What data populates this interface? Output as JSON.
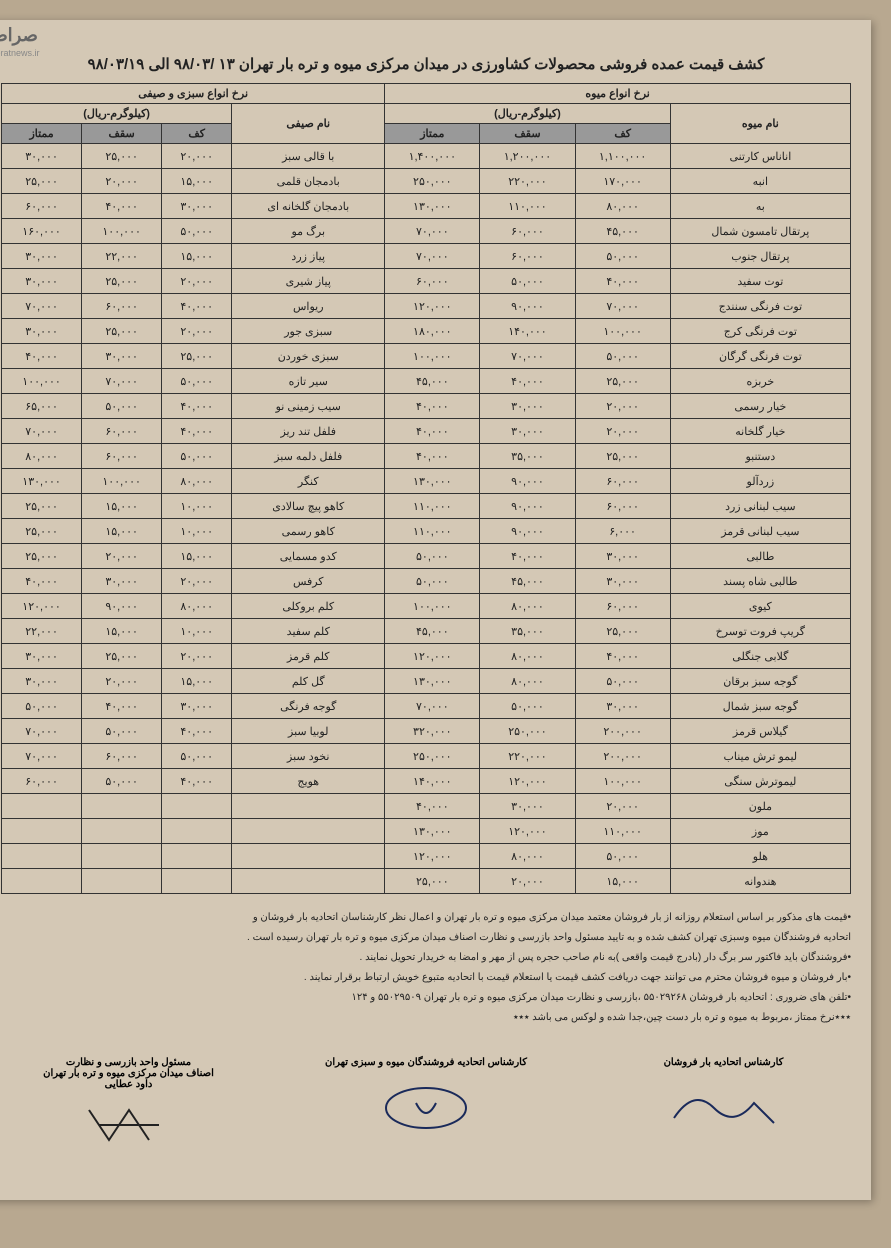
{
  "watermark": "صراط",
  "watermark_url": "seratnews.ir",
  "title": "کشف قیمت عمده فروشی محصولات کشاورزی در میدان مرکزی میوه و تره بار تهران ۱۳ /۹۸/۰۳ الی ۹۸/۰۳/۱۹",
  "section_fruit": "نرخ انواع میوه",
  "section_veg": "نرخ انواع سبزی و صیفی",
  "unit": "(کیلوگرم-ریال)",
  "col_name_fruit": "نام میوه",
  "col_name_veg": "نام صیفی",
  "col_kaf": "کف",
  "col_saghf": "سقف",
  "col_momtaz": "ممتاز",
  "fruits": [
    {
      "n": "اناناس کارتنی",
      "k": "۱,۱۰۰,۰۰۰",
      "s": "۱,۲۰۰,۰۰۰",
      "m": "۱,۴۰۰,۰۰۰"
    },
    {
      "n": "انبه",
      "k": "۱۷۰,۰۰۰",
      "s": "۲۲۰,۰۰۰",
      "m": "۲۵۰,۰۰۰"
    },
    {
      "n": "به",
      "k": "۸۰,۰۰۰",
      "s": "۱۱۰,۰۰۰",
      "m": "۱۳۰,۰۰۰"
    },
    {
      "n": "پرتقال تامسون شمال",
      "k": "۴۵,۰۰۰",
      "s": "۶۰,۰۰۰",
      "m": "۷۰,۰۰۰"
    },
    {
      "n": "پرتقال جنوب",
      "k": "۵۰,۰۰۰",
      "s": "۶۰,۰۰۰",
      "m": "۷۰,۰۰۰"
    },
    {
      "n": "توت سفید",
      "k": "۴۰,۰۰۰",
      "s": "۵۰,۰۰۰",
      "m": "۶۰,۰۰۰"
    },
    {
      "n": "توت فرنگی سنندج",
      "k": "۷۰,۰۰۰",
      "s": "۹۰,۰۰۰",
      "m": "۱۲۰,۰۰۰"
    },
    {
      "n": "توت فرنگی کرج",
      "k": "۱۰۰,۰۰۰",
      "s": "۱۴۰,۰۰۰",
      "m": "۱۸۰,۰۰۰"
    },
    {
      "n": "توت فرنگی گرگان",
      "k": "۵۰,۰۰۰",
      "s": "۷۰,۰۰۰",
      "m": "۱۰۰,۰۰۰"
    },
    {
      "n": "خربزه",
      "k": "۲۵,۰۰۰",
      "s": "۴۰,۰۰۰",
      "m": "۴۵,۰۰۰"
    },
    {
      "n": "خیار رسمی",
      "k": "۲۰,۰۰۰",
      "s": "۳۰,۰۰۰",
      "m": "۴۰,۰۰۰"
    },
    {
      "n": "خیار گلخانه",
      "k": "۲۰,۰۰۰",
      "s": "۳۰,۰۰۰",
      "m": "۴۰,۰۰۰"
    },
    {
      "n": "دستنبو",
      "k": "۲۵,۰۰۰",
      "s": "۳۵,۰۰۰",
      "m": "۴۰,۰۰۰"
    },
    {
      "n": "زردآلو",
      "k": "۶۰,۰۰۰",
      "s": "۹۰,۰۰۰",
      "m": "۱۳۰,۰۰۰"
    },
    {
      "n": "سیب لبنانی زرد",
      "k": "۶۰,۰۰۰",
      "s": "۹۰,۰۰۰",
      "m": "۱۱۰,۰۰۰"
    },
    {
      "n": "سیب لبنانی قرمز",
      "k": "۶,۰۰۰",
      "s": "۹۰,۰۰۰",
      "m": "۱۱۰,۰۰۰"
    },
    {
      "n": "طالبی",
      "k": "۳۰,۰۰۰",
      "s": "۴۰,۰۰۰",
      "m": "۵۰,۰۰۰"
    },
    {
      "n": "طالبی شاه پسند",
      "k": "۳۰,۰۰۰",
      "s": "۴۵,۰۰۰",
      "m": "۵۰,۰۰۰"
    },
    {
      "n": "کیوی",
      "k": "۶۰,۰۰۰",
      "s": "۸۰,۰۰۰",
      "m": "۱۰۰,۰۰۰"
    },
    {
      "n": "گریپ فروت توسرخ",
      "k": "۲۵,۰۰۰",
      "s": "۳۵,۰۰۰",
      "m": "۴۵,۰۰۰"
    },
    {
      "n": "گلابی جنگلی",
      "k": "۴۰,۰۰۰",
      "s": "۸۰,۰۰۰",
      "m": "۱۲۰,۰۰۰"
    },
    {
      "n": "گوجه سبز برقان",
      "k": "۵۰,۰۰۰",
      "s": "۸۰,۰۰۰",
      "m": "۱۳۰,۰۰۰"
    },
    {
      "n": "گوجه سبز شمال",
      "k": "۳۰,۰۰۰",
      "s": "۵۰,۰۰۰",
      "m": "۷۰,۰۰۰"
    },
    {
      "n": "گیلاس قرمز",
      "k": "۲۰۰,۰۰۰",
      "s": "۲۵۰,۰۰۰",
      "m": "۳۲۰,۰۰۰"
    },
    {
      "n": "لیمو ترش میناب",
      "k": "۲۰۰,۰۰۰",
      "s": "۲۲۰,۰۰۰",
      "m": "۲۵۰,۰۰۰"
    },
    {
      "n": "لیموترش سنگی",
      "k": "۱۰۰,۰۰۰",
      "s": "۱۲۰,۰۰۰",
      "m": "۱۴۰,۰۰۰"
    },
    {
      "n": "ملون",
      "k": "۲۰,۰۰۰",
      "s": "۳۰,۰۰۰",
      "m": "۴۰,۰۰۰"
    },
    {
      "n": "موز",
      "k": "۱۱۰,۰۰۰",
      "s": "۱۲۰,۰۰۰",
      "m": "۱۳۰,۰۰۰"
    },
    {
      "n": "هلو",
      "k": "۵۰,۰۰۰",
      "s": "۸۰,۰۰۰",
      "m": "۱۲۰,۰۰۰"
    },
    {
      "n": "هندوانه",
      "k": "۱۵,۰۰۰",
      "s": "۲۰,۰۰۰",
      "m": "۲۵,۰۰۰"
    }
  ],
  "vegs": [
    {
      "n": "با قالی سبز",
      "k": "۲۰,۰۰۰",
      "s": "۲۵,۰۰۰",
      "m": "۳۰,۰۰۰"
    },
    {
      "n": "بادمجان قلمی",
      "k": "۱۵,۰۰۰",
      "s": "۲۰,۰۰۰",
      "m": "۲۵,۰۰۰"
    },
    {
      "n": "بادمجان گلخانه ای",
      "k": "۳۰,۰۰۰",
      "s": "۴۰,۰۰۰",
      "m": "۶۰,۰۰۰"
    },
    {
      "n": "برگ مو",
      "k": "۵۰,۰۰۰",
      "s": "۱۰۰,۰۰۰",
      "m": "۱۶۰,۰۰۰"
    },
    {
      "n": "پیاز زرد",
      "k": "۱۵,۰۰۰",
      "s": "۲۲,۰۰۰",
      "m": "۳۰,۰۰۰"
    },
    {
      "n": "پیاز شیری",
      "k": "۲۰,۰۰۰",
      "s": "۲۵,۰۰۰",
      "m": "۳۰,۰۰۰"
    },
    {
      "n": "ریواس",
      "k": "۴۰,۰۰۰",
      "s": "۶۰,۰۰۰",
      "m": "۷۰,۰۰۰"
    },
    {
      "n": "سبزی جور",
      "k": "۲۰,۰۰۰",
      "s": "۲۵,۰۰۰",
      "m": "۳۰,۰۰۰"
    },
    {
      "n": "سبزی خوردن",
      "k": "۲۵,۰۰۰",
      "s": "۳۰,۰۰۰",
      "m": "۴۰,۰۰۰"
    },
    {
      "n": "سیر تازه",
      "k": "۵۰,۰۰۰",
      "s": "۷۰,۰۰۰",
      "m": "۱۰۰,۰۰۰"
    },
    {
      "n": "سیب زمینی نو",
      "k": "۴۰,۰۰۰",
      "s": "۵۰,۰۰۰",
      "m": "۶۵,۰۰۰"
    },
    {
      "n": "فلفل تند ریز",
      "k": "۴۰,۰۰۰",
      "s": "۶۰,۰۰۰",
      "m": "۷۰,۰۰۰"
    },
    {
      "n": "فلفل دلمه سبز",
      "k": "۵۰,۰۰۰",
      "s": "۶۰,۰۰۰",
      "m": "۸۰,۰۰۰"
    },
    {
      "n": "کنگر",
      "k": "۸۰,۰۰۰",
      "s": "۱۰۰,۰۰۰",
      "m": "۱۳۰,۰۰۰"
    },
    {
      "n": "کاهو پیچ سالادی",
      "k": "۱۰,۰۰۰",
      "s": "۱۵,۰۰۰",
      "m": "۲۵,۰۰۰"
    },
    {
      "n": "کاهو رسمی",
      "k": "۱۰,۰۰۰",
      "s": "۱۵,۰۰۰",
      "m": "۲۵,۰۰۰"
    },
    {
      "n": "کدو مسمایی",
      "k": "۱۵,۰۰۰",
      "s": "۲۰,۰۰۰",
      "m": "۲۵,۰۰۰"
    },
    {
      "n": "کرفس",
      "k": "۲۰,۰۰۰",
      "s": "۳۰,۰۰۰",
      "m": "۴۰,۰۰۰"
    },
    {
      "n": "کلم بروکلی",
      "k": "۸۰,۰۰۰",
      "s": "۹۰,۰۰۰",
      "m": "۱۲۰,۰۰۰"
    },
    {
      "n": "کلم سفید",
      "k": "۱۰,۰۰۰",
      "s": "۱۵,۰۰۰",
      "m": "۲۲,۰۰۰"
    },
    {
      "n": "کلم قرمز",
      "k": "۲۰,۰۰۰",
      "s": "۲۵,۰۰۰",
      "m": "۳۰,۰۰۰"
    },
    {
      "n": "گل کلم",
      "k": "۱۵,۰۰۰",
      "s": "۲۰,۰۰۰",
      "m": "۳۰,۰۰۰"
    },
    {
      "n": "گوجه فرنگی",
      "k": "۳۰,۰۰۰",
      "s": "۴۰,۰۰۰",
      "m": "۵۰,۰۰۰"
    },
    {
      "n": "لوبیا سبز",
      "k": "۴۰,۰۰۰",
      "s": "۵۰,۰۰۰",
      "m": "۷۰,۰۰۰"
    },
    {
      "n": "نخود سبز",
      "k": "۵۰,۰۰۰",
      "s": "۶۰,۰۰۰",
      "m": "۷۰,۰۰۰"
    },
    {
      "n": "هویج",
      "k": "۴۰,۰۰۰",
      "s": "۵۰,۰۰۰",
      "m": "۶۰,۰۰۰"
    },
    {
      "n": "",
      "k": "",
      "s": "",
      "m": ""
    },
    {
      "n": "",
      "k": "",
      "s": "",
      "m": ""
    },
    {
      "n": "",
      "k": "",
      "s": "",
      "m": ""
    },
    {
      "n": "",
      "k": "",
      "s": "",
      "m": ""
    }
  ],
  "notes": [
    "•قیمت های مذکور بر اساس استعلام روزانه از بار فروشان معتمد میدان مرکزی میوه و تره بار تهران و اعمال نظر کارشناسان اتحادیه بار فروشان و",
    "اتحادیه فروشندگان میوه وسبزی تهران کشف شده و به تایید مسئول واحد بازرسی و نظارت اصناف میدان مرکزی میوه و تره بار تهران رسیده است .",
    "•فروشندگان باید فاکتور سر برگ دار (بادرج قیمت واقعی )به نام صاحب حجره پس از مهر و امضا به خریدار تحویل نمایند .",
    "•بار فروشان و میوه فروشان محترم می توانند جهت دریافت کشف قیمت یا استعلام قیمت با اتحادیه متبوع خویش ارتباط برقرار نمایند .",
    "•تلفن های ضروری : اتحادیه بار فروشان ۵۵۰۲۹۲۶۸ ،بازرسی و نظارت میدان مرکزی میوه و تره بار تهران ۵۵۰۲۹۵۰۹ و ۱۲۴",
    "٭٭٭نرخ ممتاز ،مربوط به میوه و تره بار دست چین،جدا شده و لوکس می باشد ٭٭٭"
  ],
  "sig1_title": "کارشناس اتحادیه بار فروشان",
  "sig2_title": "کارشناس اتحادیه فروشندگان میوه و سبزی تهران",
  "sig3_title1": "مسئول واحد بازرسی و نظارت",
  "sig3_title2": "اصناف میدان مرکزی میوه و تره بار تهران",
  "sig3_name": "داود عطایی"
}
